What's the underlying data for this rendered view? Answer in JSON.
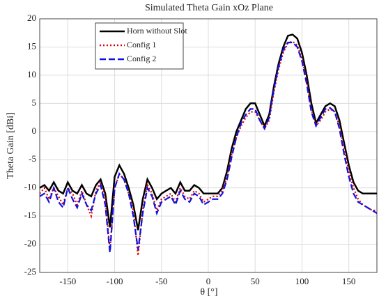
{
  "chart_data": {
    "type": "line",
    "title": "Simulated Theta Gain xOz Plane",
    "xlabel": "θ [°]",
    "ylabel": "Theta Gain [dBi]",
    "x": [
      -180,
      -175,
      -170,
      -165,
      -160,
      -155,
      -150,
      -145,
      -140,
      -135,
      -130,
      -125,
      -120,
      -115,
      -110,
      -105,
      -100,
      -95,
      -90,
      -85,
      -80,
      -75,
      -70,
      -65,
      -60,
      -55,
      -50,
      -45,
      -40,
      -35,
      -30,
      -25,
      -20,
      -15,
      -10,
      -5,
      0,
      5,
      10,
      15,
      20,
      25,
      30,
      35,
      40,
      45,
      50,
      55,
      60,
      65,
      70,
      75,
      80,
      85,
      90,
      95,
      100,
      105,
      110,
      115,
      120,
      125,
      130,
      135,
      140,
      145,
      150,
      155,
      160,
      165,
      170,
      175,
      180
    ],
    "series": [
      {
        "name": "Horn without Slot",
        "color": "#000000",
        "linestyle": "solid",
        "values": [
          -10,
          -9.5,
          -10.5,
          -9,
          -10.5,
          -11,
          -9,
          -10.5,
          -11,
          -9.5,
          -11,
          -11.5,
          -9.5,
          -8.5,
          -11,
          -17,
          -8,
          -6,
          -7.5,
          -10,
          -13,
          -17.5,
          -12,
          -8.5,
          -10,
          -12,
          -11,
          -10.5,
          -10,
          -11,
          -9,
          -10.5,
          -10.5,
          -9.5,
          -10,
          -11,
          -11,
          -11,
          -11,
          -10,
          -7,
          -3,
          0,
          2,
          4,
          5,
          5,
          3,
          1,
          3,
          8,
          12,
          15,
          17,
          17.2,
          16.5,
          14,
          10,
          5,
          1.5,
          3,
          4.5,
          5,
          4.5,
          2,
          -2,
          -6,
          -9,
          -10.5,
          -11,
          -11,
          -11,
          -11
        ]
      },
      {
        "name": "Config 1",
        "color": "#e00000",
        "linestyle": "dotted",
        "values": [
          -11,
          -10,
          -12,
          -10,
          -11.5,
          -13,
          -10,
          -11,
          -13,
          -10.5,
          -13,
          -15,
          -10.5,
          -9,
          -12,
          -21,
          -10,
          -7.5,
          -8.5,
          -11,
          -14,
          -22,
          -14,
          -9.5,
          -11,
          -14,
          -12,
          -11.5,
          -11,
          -12.5,
          -10,
          -11.5,
          -12,
          -10.5,
          -11,
          -12.5,
          -12,
          -11.5,
          -11.5,
          -10.5,
          -8,
          -4,
          -1,
          1,
          2.5,
          3.5,
          3.5,
          2,
          0.5,
          2,
          7,
          11,
          14,
          15.7,
          16,
          15.3,
          13,
          9,
          4,
          1,
          2,
          3.5,
          4,
          3.5,
          1,
          -3,
          -7,
          -10,
          -12,
          -13,
          -13.5,
          -14,
          -14
        ]
      },
      {
        "name": "Config 2",
        "color": "#1010e0",
        "linestyle": "dashed",
        "values": [
          -11.5,
          -11,
          -12.5,
          -10,
          -12.5,
          -13.5,
          -10,
          -12,
          -13.5,
          -11,
          -13,
          -14,
          -11,
          -9.5,
          -13,
          -21.5,
          -10,
          -7.5,
          -8.5,
          -11,
          -15,
          -21,
          -14.5,
          -10,
          -11.5,
          -14.5,
          -12.5,
          -12,
          -11.5,
          -13,
          -10.5,
          -12,
          -12.5,
          -11,
          -11.5,
          -13,
          -12.5,
          -12,
          -12,
          -11,
          -8.5,
          -4.5,
          -1,
          1.5,
          3,
          4,
          4,
          2,
          0.5,
          2.5,
          7.5,
          11.5,
          14.5,
          15.8,
          15.8,
          15,
          12.5,
          8.5,
          3.5,
          1,
          2.5,
          4,
          4.2,
          3.5,
          0.5,
          -4,
          -8,
          -11,
          -12.5,
          -13,
          -13.5,
          -14,
          -14.5
        ]
      }
    ],
    "xlim": [
      -180,
      180
    ],
    "xticks": [
      -150,
      -100,
      -50,
      0,
      50,
      100,
      150
    ],
    "ylim": [
      -25,
      20
    ],
    "yticks": [
      -25,
      -20,
      -15,
      -10,
      -5,
      0,
      5,
      10,
      15,
      20
    ],
    "grid": true,
    "legend": "upper left"
  }
}
